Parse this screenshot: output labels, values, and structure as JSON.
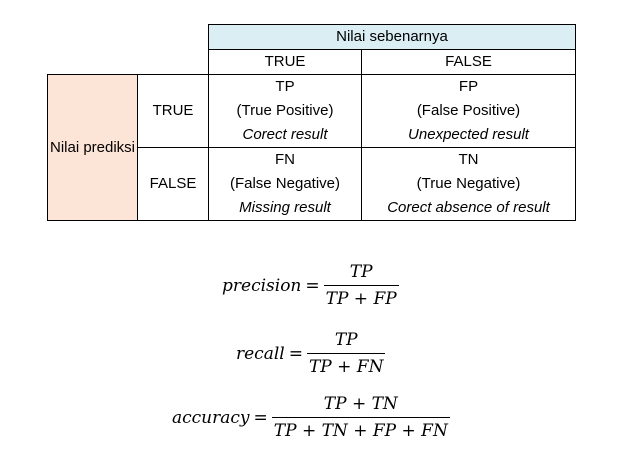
{
  "table": {
    "actual_header": "Nilai sebenarnya",
    "actual_true": "TRUE",
    "actual_false": "FALSE",
    "predicted_header": "Nilai prediksi",
    "row_true": "TRUE",
    "row_false": "FALSE",
    "tp": {
      "abbr": "TP",
      "name": "(True Positive)",
      "desc": "Corect result"
    },
    "fp": {
      "abbr": "FP",
      "name": "(False Positive)",
      "desc": "Unexpected result"
    },
    "fn": {
      "abbr": "FN",
      "name": "(False Negative)",
      "desc": "Missing result"
    },
    "tn": {
      "abbr": "TN",
      "name": "(True Negative)",
      "desc": "Corect absence of result"
    }
  },
  "colors": {
    "header_fill": "#daeef3",
    "predicted_fill": "#fce4d6"
  },
  "formulas": {
    "precision": {
      "lhs": "precision",
      "eq": "=",
      "num": "TP",
      "den": "TP + FP"
    },
    "recall": {
      "lhs": "recall",
      "eq": "=",
      "num": "TP",
      "den": "TP + FN"
    },
    "accuracy": {
      "lhs": "accuracy",
      "eq": "=",
      "num": "TP + TN",
      "den": "TP + TN + FP + FN"
    }
  }
}
